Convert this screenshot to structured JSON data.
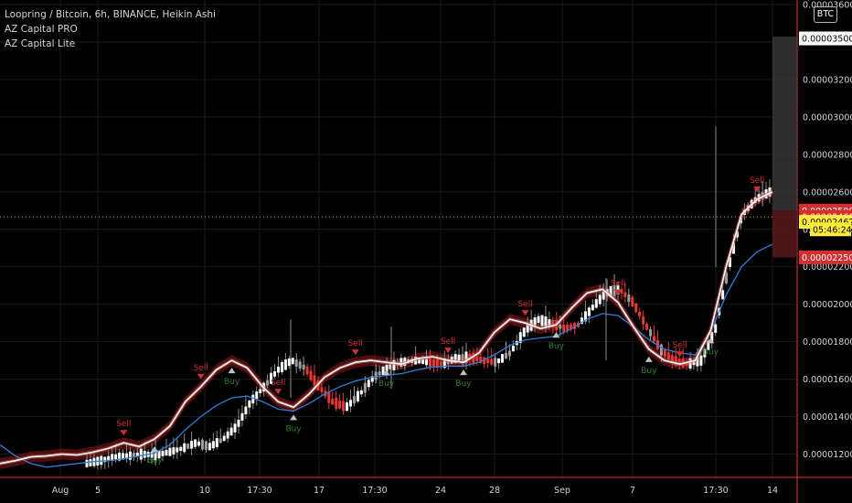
{
  "legend": {
    "symbol": "Loopring / Bitcoin, 6h, BINANCE, Heikin Ashi",
    "indicator1": "AZ Capital PRO",
    "indicator2": "AZ Capital Lite"
  },
  "currency_button": "BTC",
  "colors": {
    "background": "#000000",
    "candle_up": "#ffffff",
    "candle_down": "#e53935",
    "candle_neutral": "#9e9e9e",
    "fast_line": "#ffffff",
    "slow_line": "#2e7fd9",
    "band": "#8b1a1a",
    "axis_line": "#e53935",
    "grid": "#1a1a1a",
    "sell_marker": "#d32f2f",
    "buy_marker": "#c0c0c0",
    "buy_text": "#2e7d32"
  },
  "price_badges": [
    {
      "value": "0.00003500",
      "style": "white"
    },
    {
      "value": "0.00002500",
      "style": "red"
    },
    {
      "value": "0.00002466",
      "style": "red"
    },
    {
      "value": "0.00002462",
      "style": "yellow"
    },
    {
      "value": "05:46:24",
      "style": "yellow"
    },
    {
      "value": "0.00002250",
      "style": "red"
    }
  ],
  "current_price_line": 2.466e-05,
  "chart_data": {
    "type": "candlestick",
    "title": "Loopring / Bitcoin, 6h, BINANCE, Heikin Ashi",
    "y_ticks": [
      "0.00003600",
      "0.00003400",
      "0.00003200",
      "0.00003000",
      "0.00002800",
      "0.00002600",
      "0.00002400",
      "0.00002200",
      "0.00002000",
      "0.00001800",
      "0.00001600",
      "0.00001400",
      "0.00001200"
    ],
    "x_ticks": [
      "Aug",
      "5",
      "10",
      "17:30",
      "17",
      "17:30",
      "24",
      "28",
      "Sep",
      "7",
      "17:30",
      "14"
    ],
    "ylim": [
      1.1e-05,
      3.6e-05
    ],
    "series": [
      {
        "name": "AZ Capital PRO",
        "kind": "fast_line",
        "y": [
          1150,
          1165,
          1185,
          1190,
          1200,
          1195,
          1210,
          1230,
          1260,
          1240,
          1280,
          1350,
          1480,
          1560,
          1650,
          1700,
          1660,
          1560,
          1480,
          1450,
          1520,
          1610,
          1660,
          1690,
          1700,
          1690,
          1680,
          1710,
          1720,
          1700,
          1690,
          1740,
          1850,
          1920,
          1900,
          1870,
          1890,
          1980,
          2060,
          2080,
          2010,
          1880,
          1760,
          1700,
          1680,
          1700,
          1860,
          2200,
          2480,
          2560,
          2600
        ]
      },
      {
        "name": "AZ Capital Lite",
        "kind": "slow_line",
        "y": [
          1250,
          1190,
          1150,
          1130,
          1140,
          1150,
          1160,
          1165,
          1175,
          1190,
          1205,
          1250,
          1330,
          1400,
          1460,
          1500,
          1510,
          1480,
          1440,
          1430,
          1470,
          1520,
          1560,
          1590,
          1610,
          1620,
          1630,
          1650,
          1665,
          1670,
          1670,
          1690,
          1730,
          1780,
          1810,
          1820,
          1830,
          1870,
          1920,
          1950,
          1940,
          1880,
          1810,
          1760,
          1740,
          1730,
          1850,
          2050,
          2200,
          2280,
          2320
        ]
      }
    ],
    "signals": [
      {
        "type": "Sell",
        "x": 8
      },
      {
        "type": "Buy",
        "x": 10
      },
      {
        "type": "Sell",
        "x": 13
      },
      {
        "type": "Buy",
        "x": 15
      },
      {
        "type": "Sell",
        "x": 18
      },
      {
        "type": "Buy",
        "x": 19
      },
      {
        "type": "Sell",
        "x": 23
      },
      {
        "type": "Buy",
        "x": 25
      },
      {
        "type": "Sell",
        "x": 29
      },
      {
        "type": "Buy",
        "x": 30
      },
      {
        "type": "Sell",
        "x": 34
      },
      {
        "type": "Buy",
        "x": 36
      },
      {
        "type": "Sell",
        "x": 40
      },
      {
        "type": "Buy",
        "x": 42
      },
      {
        "type": "Sell",
        "x": 44
      },
      {
        "type": "Buy",
        "x": 46
      },
      {
        "type": "Sell",
        "x": 49
      },
      {
        "type": "Buy",
        "x": 52
      }
    ],
    "grid": true
  }
}
